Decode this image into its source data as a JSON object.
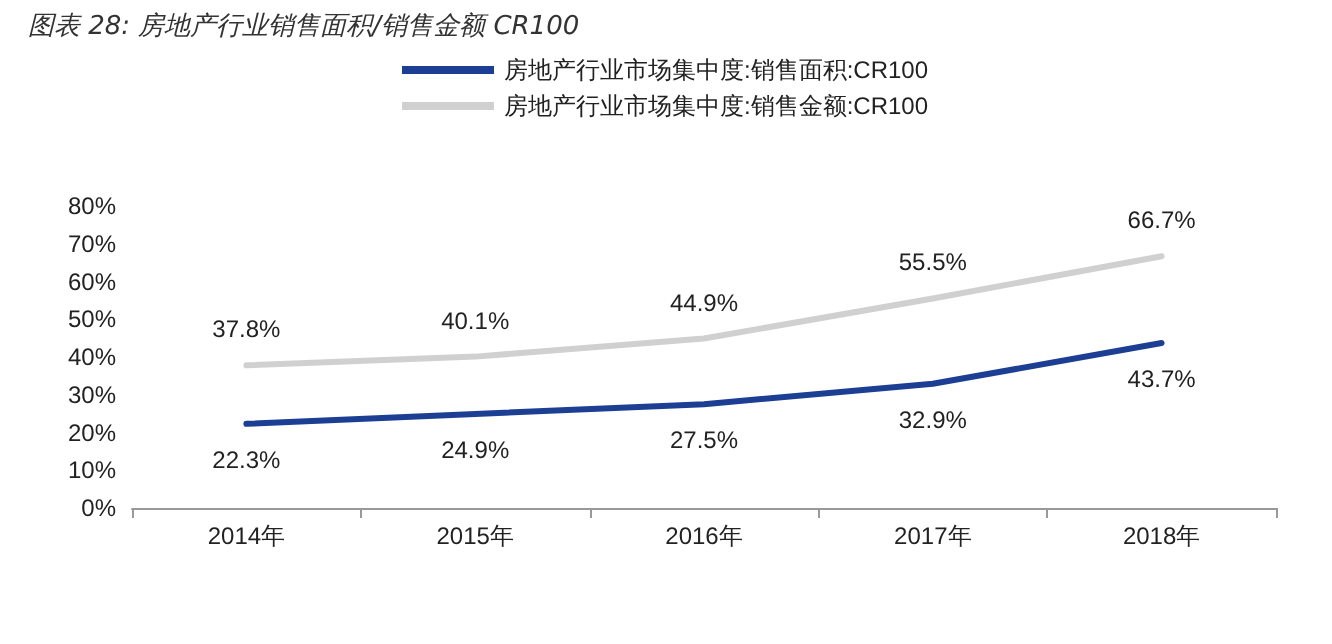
{
  "chart_data": {
    "type": "line",
    "title": "图表 28:  房地产行业销售面积/销售金额 CR100",
    "categories": [
      "2014年",
      "2015年",
      "2016年",
      "2017年",
      "2018年"
    ],
    "series": [
      {
        "name": "房地产行业市场集中度:销售面积:CR100",
        "color": "#1c3f94",
        "values": [
          22.3,
          24.9,
          27.5,
          32.9,
          43.7
        ],
        "value_labels": [
          "22.3%",
          "24.9%",
          "27.5%",
          "32.9%",
          "43.7%"
        ]
      },
      {
        "name": "房地产行业市场集中度:销售金额:CR100",
        "color": "#d0d0d0",
        "values": [
          37.8,
          40.1,
          44.9,
          55.5,
          66.7
        ],
        "value_labels": [
          "37.8%",
          "40.1%",
          "44.9%",
          "55.5%",
          "66.7%"
        ]
      }
    ],
    "ylim": [
      0,
      80
    ],
    "yticks": [
      {
        "value": 0,
        "label": "0%"
      },
      {
        "value": 10,
        "label": "10%"
      },
      {
        "value": 20,
        "label": "20%"
      },
      {
        "value": 30,
        "label": "30%"
      },
      {
        "value": 40,
        "label": "40%"
      },
      {
        "value": 50,
        "label": "50%"
      },
      {
        "value": 60,
        "label": "60%"
      },
      {
        "value": 70,
        "label": "70%"
      },
      {
        "value": 80,
        "label": "80%"
      }
    ],
    "legend": "top",
    "grid": false,
    "marker": "none",
    "line_style": "solid"
  }
}
